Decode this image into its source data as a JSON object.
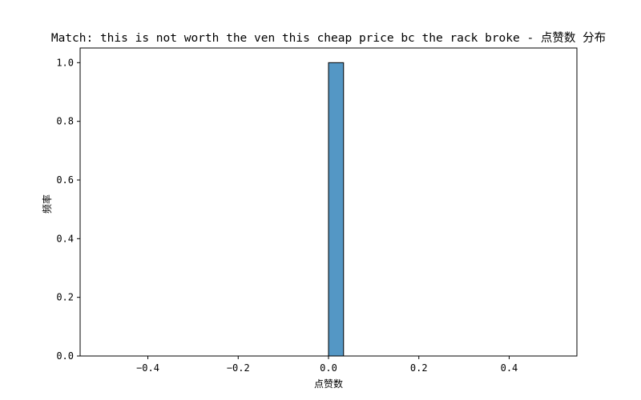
{
  "chart_data": {
    "type": "bar",
    "title": "Match: this is not worth the ven this cheap price bc the rack broke - 点赞数 分布",
    "xlabel": "点赞数",
    "ylabel": "频率",
    "xlim": [
      -0.55,
      0.55
    ],
    "ylim": [
      0,
      1.05
    ],
    "bin_width": 0.0333,
    "bars": [
      {
        "x0": -0.5,
        "x1": 0.0,
        "value": 0
      },
      {
        "x0": 0.0,
        "x1": 0.0333,
        "value": 1
      },
      {
        "x0": 0.0333,
        "x1": 0.5,
        "value": 0
      }
    ],
    "x_ticks": [
      {
        "value": -0.4,
        "label": "−0.4"
      },
      {
        "value": -0.2,
        "label": "−0.2"
      },
      {
        "value": 0.0,
        "label": "0.0"
      },
      {
        "value": 0.2,
        "label": "0.2"
      },
      {
        "value": 0.4,
        "label": "0.4"
      }
    ],
    "y_ticks": [
      {
        "value": 0.0,
        "label": "0.0"
      },
      {
        "value": 0.2,
        "label": "0.2"
      },
      {
        "value": 0.4,
        "label": "0.4"
      },
      {
        "value": 0.6,
        "label": "0.6"
      },
      {
        "value": 0.8,
        "label": "0.8"
      },
      {
        "value": 1.0,
        "label": "1.0"
      }
    ],
    "grid": false,
    "legend": "none",
    "bar_color": "#5497c5",
    "edge_color": "#000000"
  }
}
